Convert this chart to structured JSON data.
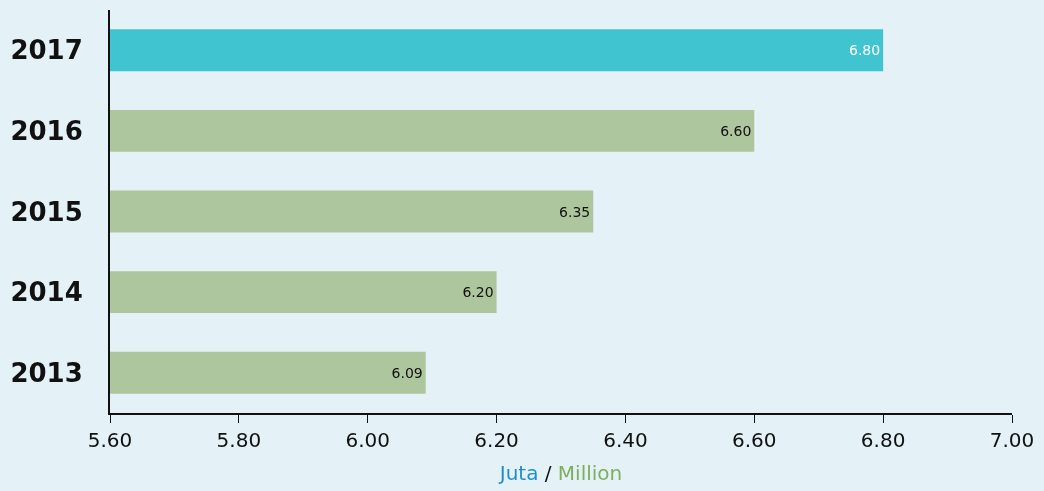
{
  "chart_data": {
    "type": "bar",
    "orientation": "horizontal",
    "categories": [
      "2017",
      "2016",
      "2015",
      "2014",
      "2013"
    ],
    "values": [
      6.8,
      6.6,
      6.35,
      6.2,
      6.09
    ],
    "value_labels": [
      "6.80",
      "6.60",
      "6.35",
      "6.20",
      "6.09"
    ],
    "colors": [
      "#40c4d0",
      "#adc69e",
      "#adc69e",
      "#adc69e",
      "#adc69e"
    ],
    "xlim": [
      5.6,
      7.0
    ],
    "xticks": [
      {
        "value": 5.6,
        "label": "5.60"
      },
      {
        "value": 5.8,
        "label": "5.80"
      },
      {
        "value": 6.0,
        "label": "6.00"
      },
      {
        "value": 6.2,
        "label": "6.20"
      },
      {
        "value": 6.4,
        "label": "6.40"
      },
      {
        "value": 6.6,
        "label": "6.60"
      },
      {
        "value": 6.8,
        "label": "6.80"
      },
      {
        "value": 7.0,
        "label": "7.00"
      }
    ],
    "xlabel": "Juta / Million"
  }
}
